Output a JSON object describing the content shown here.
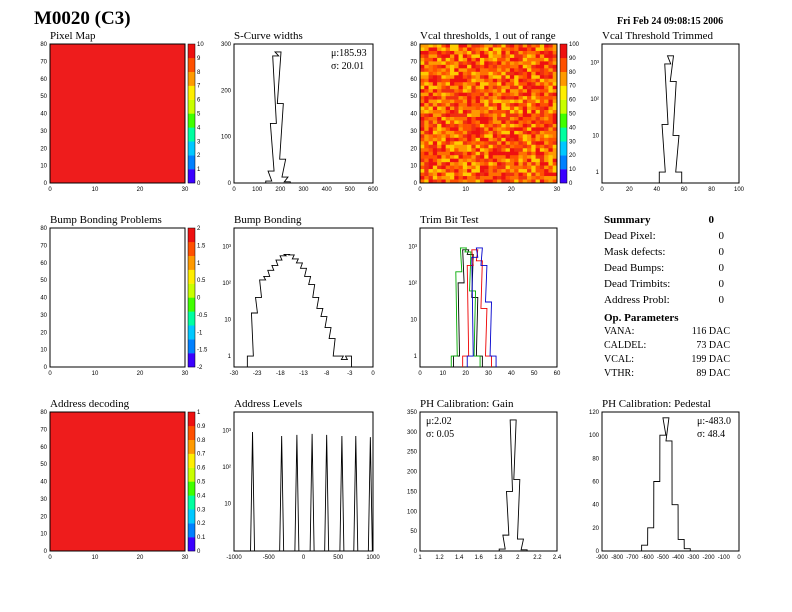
{
  "header": {
    "module": "M0020 (C3)",
    "date": "Fri Feb 24 09:08:15 2006"
  },
  "colors": {
    "map_red": "#ee1c1c",
    "palette": [
      "#3b00ff",
      "#0080ff",
      "#00c8ff",
      "#00ffa0",
      "#40ff00",
      "#c8ff00",
      "#ffee00",
      "#ff9a00",
      "#ff5000",
      "#ee1010"
    ]
  },
  "chart_data": [
    {
      "id": "pixel_map",
      "type": "heatmap",
      "title": "Pixel Map",
      "xlim": [
        0,
        32
      ],
      "ylim": [
        0,
        80
      ],
      "xticks": [
        "0",
        "10",
        "20",
        "30"
      ],
      "yticks": [
        "0",
        "10",
        "20",
        "30",
        "40",
        "50",
        "60",
        "70",
        "80"
      ],
      "zticks": [
        "0",
        "1",
        "2",
        "3",
        "4",
        "5",
        "6",
        "7",
        "8",
        "9",
        "10"
      ],
      "fill": "uniform red"
    },
    {
      "id": "scurve_widths",
      "type": "bar",
      "title": "S-Curve widths",
      "xlim": [
        0,
        600
      ],
      "ylim": [
        0,
        350
      ],
      "xticks": [
        "0",
        "100",
        "200",
        "300",
        "400",
        "500",
        "600"
      ],
      "yticks": [
        "0",
        "100",
        "200",
        "300"
      ],
      "stats": [
        "μ:185.93",
        "σ: 20.01"
      ],
      "x": [
        150,
        160,
        170,
        180,
        190,
        200,
        210,
        220,
        230
      ],
      "values": [
        5,
        30,
        150,
        320,
        330,
        200,
        60,
        15,
        3
      ]
    },
    {
      "id": "vcal_thresholds",
      "type": "heatmap",
      "title": "Vcal thresholds, 1 out of range",
      "xlim": [
        0,
        32
      ],
      "ylim": [
        0,
        80
      ],
      "xticks": [
        "0",
        "10",
        "20",
        "30"
      ],
      "yticks": [
        "0",
        "10",
        "20",
        "30",
        "40",
        "50",
        "60",
        "70",
        "80"
      ],
      "zticks": [
        "0",
        "10",
        "20",
        "30",
        "40",
        "50",
        "60",
        "70",
        "80",
        "90",
        "100"
      ],
      "fill": "noisy red-yellow"
    },
    {
      "id": "vcal_trimmed",
      "type": "line",
      "title": "Vcal Threshold Trimmed",
      "xlim": [
        0,
        100
      ],
      "log": true,
      "xticks": [
        "0",
        "20",
        "40",
        "60",
        "80",
        "100"
      ],
      "yticks": [
        "1",
        "10",
        "10²",
        "10³"
      ],
      "x": [
        44,
        46,
        48,
        50,
        52,
        54,
        56
      ],
      "values": [
        1,
        20,
        900,
        1500,
        300,
        10,
        1
      ]
    },
    {
      "id": "bump_problems",
      "type": "heatmap",
      "title": "Bump Bonding Problems",
      "xlim": [
        0,
        32
      ],
      "ylim": [
        0,
        80
      ],
      "xticks": [
        "0",
        "10",
        "20",
        "30"
      ],
      "yticks": [
        "0",
        "10",
        "20",
        "30",
        "40",
        "50",
        "60",
        "70",
        "80"
      ],
      "zticks": [
        "-2",
        "-1.5",
        "-1",
        "-0.5",
        "0",
        "0.5",
        "1",
        "1.5",
        "2"
      ],
      "fill": "empty"
    },
    {
      "id": "bump_bonding",
      "type": "line",
      "title": "Bump Bonding",
      "xlim": [
        -32,
        2
      ],
      "log": true,
      "xticks": [
        "-30",
        "-23",
        "-18",
        "-13",
        "-8",
        "-3",
        "0"
      ],
      "yticks": [
        "1",
        "10",
        "10²",
        "10³"
      ],
      "x": [
        -28,
        -27,
        -26,
        -25,
        -24,
        -23,
        -22,
        -21,
        -20,
        -19,
        -18,
        -17,
        -16,
        -15,
        -14,
        -13,
        -12,
        -11,
        -10,
        -9,
        -8,
        -7,
        -6,
        -5,
        -4
      ],
      "values": [
        1,
        15,
        40,
        120,
        150,
        220,
        300,
        420,
        550,
        600,
        580,
        450,
        350,
        250,
        150,
        90,
        40,
        20,
        12,
        6,
        3,
        1,
        1,
        0.8,
        1
      ]
    },
    {
      "id": "trim_bit_test",
      "type": "line",
      "title": "Trim Bit Test",
      "xlim": [
        0,
        60
      ],
      "log": true,
      "xticks": [
        "0",
        "10",
        "20",
        "30",
        "40",
        "50",
        "60"
      ],
      "yticks": [
        "1",
        "10",
        "10²",
        "10³"
      ],
      "series": [
        {
          "color": "#000",
          "x": [
            16,
            18,
            20,
            22,
            24,
            26
          ],
          "values": [
            1,
            100,
            800,
            600,
            40,
            1
          ]
        },
        {
          "color": "#0a0",
          "x": [
            15,
            17,
            19,
            21,
            23,
            25
          ],
          "values": [
            1,
            200,
            900,
            700,
            60,
            1
          ]
        },
        {
          "color": "#e00",
          "x": [
            20,
            22,
            24,
            26,
            28,
            30
          ],
          "values": [
            1,
            300,
            800,
            400,
            20,
            1
          ]
        },
        {
          "color": "#00c",
          "x": [
            22,
            24,
            26,
            28,
            30,
            32
          ],
          "values": [
            1,
            500,
            900,
            300,
            30,
            1
          ]
        }
      ]
    },
    {
      "id": "address_decoding",
      "type": "heatmap",
      "title": "Address decoding",
      "xlim": [
        0,
        32
      ],
      "ylim": [
        0,
        80
      ],
      "xticks": [
        "0",
        "10",
        "20",
        "30"
      ],
      "yticks": [
        "0",
        "10",
        "20",
        "30",
        "40",
        "50",
        "60",
        "70",
        "80"
      ],
      "zticks": [
        "0",
        "0.1",
        "0.2",
        "0.3",
        "0.4",
        "0.5",
        "0.6",
        "0.7",
        "0.8",
        "0.9",
        "1"
      ],
      "fill": "uniform red"
    },
    {
      "id": "address_levels",
      "type": "line",
      "title": "Address Levels",
      "xlim": [
        -1100,
        1000
      ],
      "log": true,
      "xticks": [
        "-1000",
        "-500",
        "0",
        "500",
        "1000"
      ],
      "yticks": [
        "10",
        "10²",
        "10³"
      ],
      "x": [
        -820,
        -380,
        -150,
        80,
        300,
        530,
        740,
        960
      ],
      "values": [
        900,
        700,
        750,
        800,
        750,
        700,
        700,
        650
      ]
    },
    {
      "id": "ph_gain",
      "type": "bar",
      "title": "PH Calibration: Gain",
      "xlim": [
        1,
        2.5
      ],
      "ylim": [
        0,
        350
      ],
      "xticks": [
        "1",
        "1.2",
        "1.4",
        "1.6",
        "1.8",
        "2",
        "2.2",
        "2.4"
      ],
      "yticks": [
        "0",
        "50",
        "100",
        "150",
        "200",
        "250",
        "300",
        "350"
      ],
      "stats": [
        "μ:2.02",
        "σ: 0.05"
      ],
      "x": [
        1.9,
        1.94,
        1.98,
        2.02,
        2.06,
        2.1,
        2.14
      ],
      "values": [
        5,
        40,
        150,
        330,
        180,
        30,
        3
      ]
    },
    {
      "id": "ph_pedestal",
      "type": "bar",
      "title": "PH Calibration: Pedestal",
      "xlim": [
        -900,
        0
      ],
      "ylim": [
        0,
        120
      ],
      "xticks": [
        "-900",
        "-800",
        "-700",
        "-600",
        "-500",
        "-400",
        "-300",
        "-200",
        "-100",
        "0"
      ],
      "yticks": [
        "0",
        "20",
        "40",
        "60",
        "80",
        "100",
        "120"
      ],
      "stats": [
        "μ:-483.0",
        "σ: 48.4"
      ],
      "x": [
        -620,
        -580,
        -540,
        -500,
        -480,
        -460,
        -420,
        -380,
        -340
      ],
      "values": [
        5,
        20,
        60,
        100,
        115,
        95,
        40,
        10,
        2
      ]
    }
  ],
  "summary": {
    "title": "Summary",
    "total": "0",
    "rows": [
      {
        "label": "Dead Pixel:",
        "value": "0"
      },
      {
        "label": "Mask defects:",
        "value": "0"
      },
      {
        "label": "Dead Bumps:",
        "value": "0"
      },
      {
        "label": "Dead Trimbits:",
        "value": "0"
      },
      {
        "label": "Address Probl:",
        "value": "0"
      }
    ]
  },
  "params": {
    "title": "Op. Parameters",
    "rows": [
      {
        "label": "VANA:",
        "value": "116 DAC"
      },
      {
        "label": "CALDEL:",
        "value": "73 DAC"
      },
      {
        "label": "VCAL:",
        "value": "199 DAC"
      },
      {
        "label": "VTHR:",
        "value": "89 DAC"
      }
    ]
  }
}
